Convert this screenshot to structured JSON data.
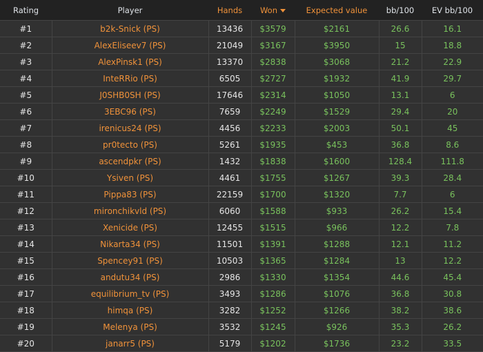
{
  "colors": {
    "accent": "#f0923a",
    "positive": "#79c25d",
    "header_bg": "#222222",
    "row_bg": "#313131"
  },
  "headers": {
    "rating": "Rating",
    "player": "Player",
    "hands": "Hands",
    "won": "Won",
    "expected_value": "Expected value",
    "bb100": "bb/100",
    "ev_bb100": "EV bb/100",
    "won_sort_icon": "caret-down-icon"
  },
  "rows": [
    {
      "rating": "#1",
      "player": "b2k-Snick (PS)",
      "hands": "13436",
      "won": "$3579",
      "ev": "$2161",
      "bb": "26.6",
      "evbb": "16.1"
    },
    {
      "rating": "#2",
      "player": "AlexEliseev7 (PS)",
      "hands": "21049",
      "won": "$3167",
      "ev": "$3950",
      "bb": "15",
      "evbb": "18.8"
    },
    {
      "rating": "#3",
      "player": "AlexPinsk1 (PS)",
      "hands": "13370",
      "won": "$2838",
      "ev": "$3068",
      "bb": "21.2",
      "evbb": "22.9"
    },
    {
      "rating": "#4",
      "player": "InteRRio (PS)",
      "hands": "6505",
      "won": "$2727",
      "ev": "$1932",
      "bb": "41.9",
      "evbb": "29.7"
    },
    {
      "rating": "#5",
      "player": "J0SHB0SH (PS)",
      "hands": "17646",
      "won": "$2314",
      "ev": "$1050",
      "bb": "13.1",
      "evbb": "6"
    },
    {
      "rating": "#6",
      "player": "3EBC96 (PS)",
      "hands": "7659",
      "won": "$2249",
      "ev": "$1529",
      "bb": "29.4",
      "evbb": "20"
    },
    {
      "rating": "#7",
      "player": "irenicus24 (PS)",
      "hands": "4456",
      "won": "$2233",
      "ev": "$2003",
      "bb": "50.1",
      "evbb": "45"
    },
    {
      "rating": "#8",
      "player": "pr0tecto (PS)",
      "hands": "5261",
      "won": "$1935",
      "ev": "$453",
      "bb": "36.8",
      "evbb": "8.6"
    },
    {
      "rating": "#9",
      "player": "ascendpkr (PS)",
      "hands": "1432",
      "won": "$1838",
      "ev": "$1600",
      "bb": "128.4",
      "evbb": "111.8"
    },
    {
      "rating": "#10",
      "player": "Ysiven (PS)",
      "hands": "4461",
      "won": "$1755",
      "ev": "$1267",
      "bb": "39.3",
      "evbb": "28.4"
    },
    {
      "rating": "#11",
      "player": "Pippa83 (PS)",
      "hands": "22159",
      "won": "$1700",
      "ev": "$1320",
      "bb": "7.7",
      "evbb": "6"
    },
    {
      "rating": "#12",
      "player": "mironchikvld (PS)",
      "hands": "6060",
      "won": "$1588",
      "ev": "$933",
      "bb": "26.2",
      "evbb": "15.4"
    },
    {
      "rating": "#13",
      "player": "Xenicide (PS)",
      "hands": "12455",
      "won": "$1515",
      "ev": "$966",
      "bb": "12.2",
      "evbb": "7.8"
    },
    {
      "rating": "#14",
      "player": "Nikarta34 (PS)",
      "hands": "11501",
      "won": "$1391",
      "ev": "$1288",
      "bb": "12.1",
      "evbb": "11.2"
    },
    {
      "rating": "#15",
      "player": "Spencey91 (PS)",
      "hands": "10503",
      "won": "$1365",
      "ev": "$1284",
      "bb": "13",
      "evbb": "12.2"
    },
    {
      "rating": "#16",
      "player": "andutu34 (PS)",
      "hands": "2986",
      "won": "$1330",
      "ev": "$1354",
      "bb": "44.6",
      "evbb": "45.4"
    },
    {
      "rating": "#17",
      "player": "equilibrium_tv (PS)",
      "hands": "3493",
      "won": "$1286",
      "ev": "$1076",
      "bb": "36.8",
      "evbb": "30.8"
    },
    {
      "rating": "#18",
      "player": "himqa (PS)",
      "hands": "3282",
      "won": "$1252",
      "ev": "$1266",
      "bb": "38.2",
      "evbb": "38.6"
    },
    {
      "rating": "#19",
      "player": "Melenya (PS)",
      "hands": "3532",
      "won": "$1245",
      "ev": "$926",
      "bb": "35.3",
      "evbb": "26.2"
    },
    {
      "rating": "#20",
      "player": "janarr5 (PS)",
      "hands": "5179",
      "won": "$1202",
      "ev": "$1736",
      "bb": "23.2",
      "evbb": "33.5"
    }
  ]
}
